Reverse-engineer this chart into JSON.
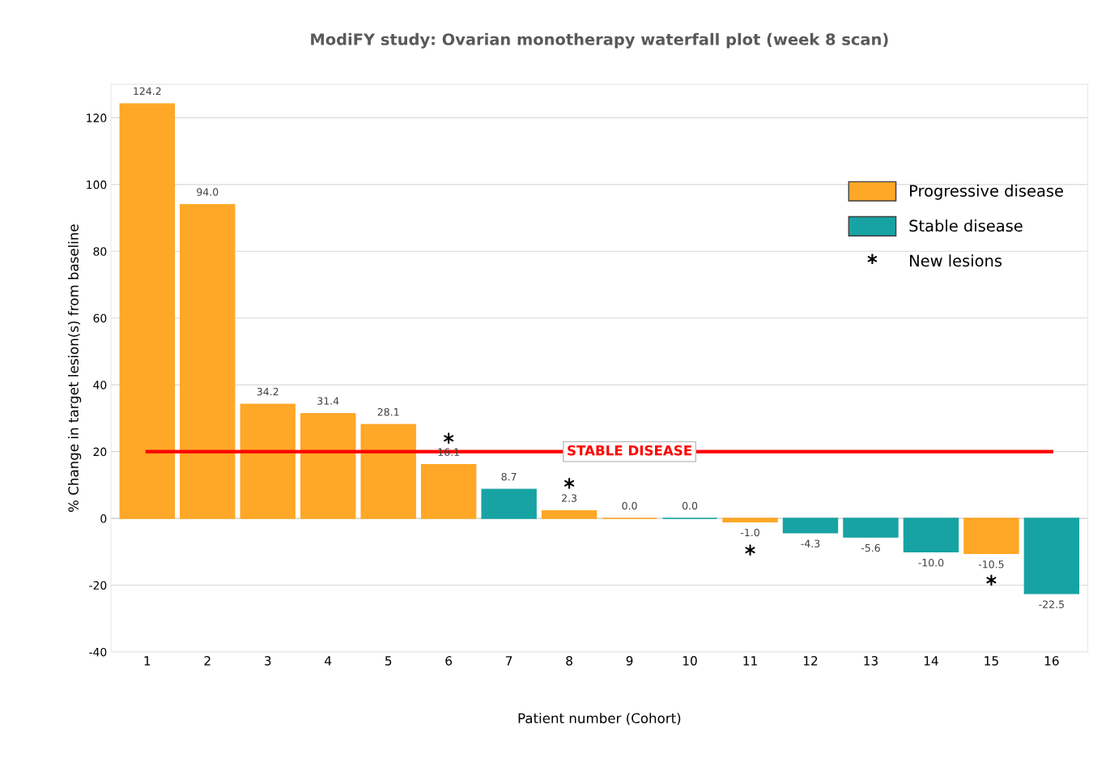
{
  "chart_data": {
    "type": "bar",
    "title": "ModiFY study: Ovarian monotherapy waterfall plot (week 8 scan)",
    "xlabel": "Patient number (Cohort)",
    "ylabel": "% Change in target lesion(s) from baseline",
    "categories": [
      "1",
      "2",
      "3",
      "4",
      "5",
      "6",
      "7",
      "8",
      "9",
      "10",
      "11",
      "12",
      "13",
      "14",
      "15",
      "16"
    ],
    "series": [
      {
        "name": "Progressive disease",
        "color": "#ffa726",
        "values": [
          124.2,
          94.0,
          34.2,
          31.4,
          28.1,
          16.1,
          null,
          2.3,
          0.0,
          null,
          -1.0,
          null,
          null,
          null,
          -10.5,
          null
        ],
        "value_labels": [
          "124.2",
          "94.0",
          "34.2",
          "31.4",
          "28.1",
          "16.1",
          null,
          "2.3",
          "0.0",
          null,
          "-1.0",
          null,
          null,
          null,
          "-10.5",
          null
        ]
      },
      {
        "name": "Stable disease",
        "color": "#17a3a3",
        "values": [
          null,
          null,
          null,
          null,
          null,
          null,
          8.7,
          null,
          null,
          0.0,
          null,
          -4.3,
          -5.6,
          -10.0,
          null,
          -22.5
        ],
        "value_labels": [
          null,
          null,
          null,
          null,
          null,
          null,
          "8.7",
          null,
          null,
          "0.0",
          null,
          "-4.3",
          "-5.6",
          "-10.0",
          null,
          "-22.5"
        ]
      },
      {
        "name": "New lesions",
        "type": "scatter",
        "marker": "cross",
        "color": "#000000",
        "x": [
          "6",
          "8",
          "11",
          "15"
        ],
        "values": [
          24,
          10.5,
          -9.5,
          -18.5
        ]
      }
    ],
    "ylim": [
      -40,
      130
    ],
    "yticks": [
      -40,
      -20,
      0,
      20,
      40,
      60,
      80,
      100,
      120
    ],
    "grid": "y",
    "legend": "right",
    "ref_lines": [
      {
        "axis": "y",
        "value": 20,
        "label": "STABLE DISEASE",
        "color": "#ff0000"
      }
    ]
  }
}
